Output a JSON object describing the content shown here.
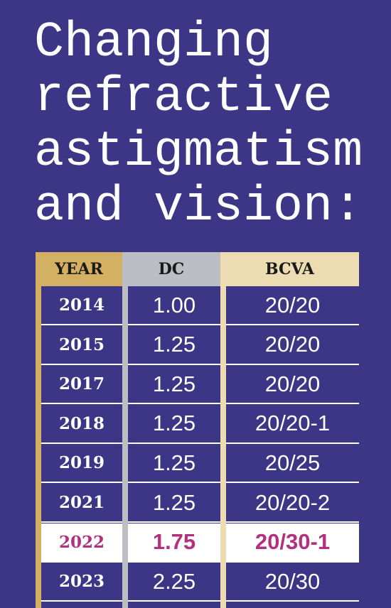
{
  "header": {
    "title_lines": [
      "Changing",
      "refractive",
      "astigmatism",
      "and vision:"
    ]
  },
  "table": {
    "columns": [
      "YEAR",
      "DC",
      "BCVA"
    ],
    "rows": [
      [
        "2014",
        "1.00",
        "20/20"
      ],
      [
        "2015",
        "1.25",
        "20/20"
      ],
      [
        "2017",
        "1.25",
        "20/20"
      ],
      [
        "2018",
        "1.25",
        "20/20-1"
      ],
      [
        "2019",
        "1.25",
        "20/25"
      ],
      [
        "2021",
        "1.25",
        "20/20-2"
      ],
      [
        "2022",
        "1.75",
        "20/30-1"
      ],
      [
        "2023",
        "2.25",
        "20/30"
      ]
    ]
  }
}
